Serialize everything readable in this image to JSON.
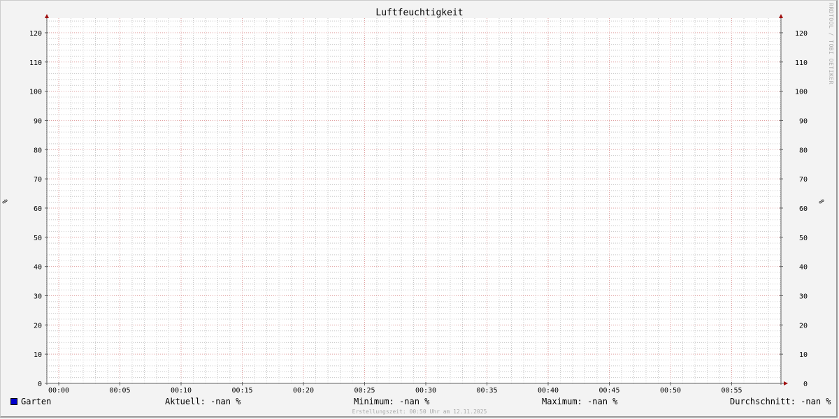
{
  "chart_data": {
    "type": "line",
    "title": "Luftfeuchtigkeit",
    "ylabel": "%",
    "ylim": [
      0,
      125
    ],
    "y_ticks": [
      "0",
      "10",
      "20",
      "30",
      "40",
      "50",
      "60",
      "70",
      "80",
      "90",
      "100",
      "110",
      "120"
    ],
    "x_ticks": [
      "00:00",
      "00:05",
      "00:10",
      "00:15",
      "00:20",
      "00:25",
      "00:30",
      "00:35",
      "00:40",
      "00:45",
      "00:50",
      "00:55"
    ],
    "grid": true,
    "series": [
      {
        "name": "Garten",
        "color": "#0000cc",
        "values": []
      }
    ]
  },
  "legend": {
    "series_name": "Garten",
    "current": "Aktuell: -nan %",
    "minimum": "Minimum: -nan %",
    "maximum": "Maximum: -nan %",
    "average": "Durchschnitt: -nan %"
  },
  "watermark": "RRDTOOL / TOBI OETIKER",
  "footer": "Erstellungszeit: 00:50 Uhr am 12.11.2025",
  "colors": {
    "major_grid": "#e0a0a0",
    "minor_grid": "#c8c8c8",
    "axis": "#606060",
    "arrow": "#a01010"
  }
}
